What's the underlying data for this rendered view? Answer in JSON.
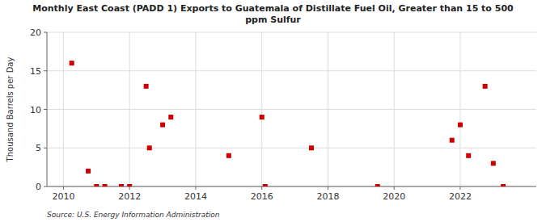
{
  "chart_data": {
    "type": "scatter",
    "title": "Monthly East Coast (PADD 1) Exports to Guatemala of Distillate Fuel Oil, Greater than 15 to 500\nppm Sulfur",
    "y_label": "Thousand Barrels per Day",
    "annotations": [
      "Source: U.S. Energy Information Administration"
    ],
    "x": [
      2010.25,
      2010.75,
      2011.0,
      2011.25,
      2011.75,
      2012.0,
      2012.5,
      2012.6,
      2013.0,
      2013.25,
      2015.0,
      2016.0,
      2016.1,
      2017.5,
      2019.5,
      2021.75,
      2022.0,
      2022.25,
      2022.75,
      2023.0,
      2023.3
    ],
    "values": [
      16,
      2,
      0,
      0,
      0,
      0,
      13,
      5,
      8,
      9,
      4,
      9,
      0,
      5,
      0,
      6,
      8,
      4,
      13,
      3,
      0
    ],
    "color": "#cc0000",
    "marker": "square",
    "xlim": [
      2009.5,
      2024.3
    ],
    "ylim": [
      0,
      20
    ],
    "xticks": [
      2010,
      2012,
      2014,
      2016,
      2018,
      2020,
      2022
    ],
    "yticks": [
      0,
      5,
      10,
      15,
      20
    ],
    "grid": true
  }
}
